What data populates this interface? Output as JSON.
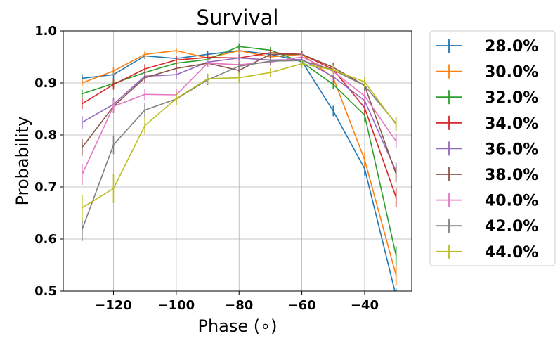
{
  "chart_data": {
    "type": "line",
    "title": "Survival",
    "xlabel": "Phase (∘)",
    "ylabel": "Probability",
    "xlim": [
      -136,
      -25
    ],
    "ylim": [
      0.5,
      1.0
    ],
    "xticks": [
      -120,
      -100,
      -80,
      -60,
      -40
    ],
    "xtick_labels": [
      "−120",
      "−100",
      "−80",
      "−60",
      "−40"
    ],
    "yticks": [
      0.5,
      0.6,
      0.7,
      0.8,
      0.9,
      1.0
    ],
    "ytick_labels": [
      "0.5",
      "0.6",
      "0.7",
      "0.8",
      "0.9",
      "1.0"
    ],
    "grid": true,
    "legend_position": "outside-right",
    "x": [
      -130,
      -120,
      -110,
      -100,
      -90,
      -80,
      -70,
      -60,
      -50,
      -40,
      -30
    ],
    "series": [
      {
        "name": "28.0%",
        "color": "#1f77b4",
        "values": [
          0.909,
          0.916,
          0.952,
          0.947,
          0.955,
          0.962,
          0.955,
          0.942,
          0.846,
          0.735,
          0.49
        ],
        "errors": [
          0.008,
          0.008,
          0.006,
          0.006,
          0.006,
          0.006,
          0.006,
          0.007,
          0.01,
          0.013,
          0.015
        ]
      },
      {
        "name": "30.0%",
        "color": "#ff7f0e",
        "values": [
          0.9,
          0.923,
          0.955,
          0.962,
          0.948,
          0.962,
          0.95,
          0.955,
          0.91,
          0.752,
          0.53
        ],
        "errors": [
          0.007,
          0.007,
          0.006,
          0.006,
          0.006,
          0.006,
          0.006,
          0.006,
          0.009,
          0.014,
          0.02
        ]
      },
      {
        "name": "32.0%",
        "color": "#2ca02c",
        "values": [
          0.879,
          0.899,
          0.92,
          0.938,
          0.945,
          0.97,
          0.963,
          0.94,
          0.897,
          0.838,
          0.568
        ],
        "errors": [
          0.008,
          0.008,
          0.007,
          0.007,
          0.006,
          0.006,
          0.006,
          0.007,
          0.009,
          0.012,
          0.018
        ]
      },
      {
        "name": "34.0%",
        "color": "#d62728",
        "values": [
          0.86,
          0.897,
          0.927,
          0.944,
          0.949,
          0.948,
          0.958,
          0.955,
          0.926,
          0.852,
          0.68
        ],
        "errors": [
          0.01,
          0.01,
          0.009,
          0.008,
          0.007,
          0.007,
          0.006,
          0.006,
          0.008,
          0.012,
          0.018
        ]
      },
      {
        "name": "36.0%",
        "color": "#9467bd",
        "values": [
          0.824,
          0.859,
          0.913,
          0.916,
          0.94,
          0.948,
          0.944,
          0.945,
          0.912,
          0.866,
          0.73
        ],
        "errors": [
          0.012,
          0.012,
          0.009,
          0.009,
          0.007,
          0.007,
          0.007,
          0.007,
          0.009,
          0.012,
          0.017
        ]
      },
      {
        "name": "38.0%",
        "color": "#8c564b",
        "values": [
          0.776,
          0.855,
          0.91,
          0.928,
          0.938,
          0.924,
          0.955,
          0.955,
          0.93,
          0.895,
          0.725
        ],
        "errors": [
          0.016,
          0.013,
          0.01,
          0.008,
          0.007,
          0.007,
          0.006,
          0.006,
          0.008,
          0.01,
          0.016
        ]
      },
      {
        "name": "40.0%",
        "color": "#e377c2",
        "values": [
          0.724,
          0.855,
          0.878,
          0.877,
          0.938,
          0.935,
          0.94,
          0.95,
          0.922,
          0.875,
          0.788
        ],
        "errors": [
          0.02,
          0.013,
          0.011,
          0.011,
          0.008,
          0.008,
          0.007,
          0.006,
          0.008,
          0.011,
          0.014
        ]
      },
      {
        "name": "42.0%",
        "color": "#7f7f7f",
        "values": [
          0.618,
          0.781,
          0.848,
          0.869,
          0.906,
          0.932,
          0.942,
          0.943,
          0.925,
          0.895,
          0.822
        ],
        "errors": [
          0.022,
          0.018,
          0.014,
          0.012,
          0.01,
          0.008,
          0.007,
          0.007,
          0.008,
          0.01,
          0.013
        ]
      },
      {
        "name": "44.0%",
        "color": "#bcbd22",
        "values": [
          0.66,
          0.697,
          0.818,
          0.87,
          0.908,
          0.91,
          0.92,
          0.937,
          0.925,
          0.902,
          0.82
        ],
        "errors": [
          0.025,
          0.028,
          0.017,
          0.012,
          0.01,
          0.01,
          0.009,
          0.008,
          0.009,
          0.01,
          0.014
        ]
      }
    ]
  }
}
